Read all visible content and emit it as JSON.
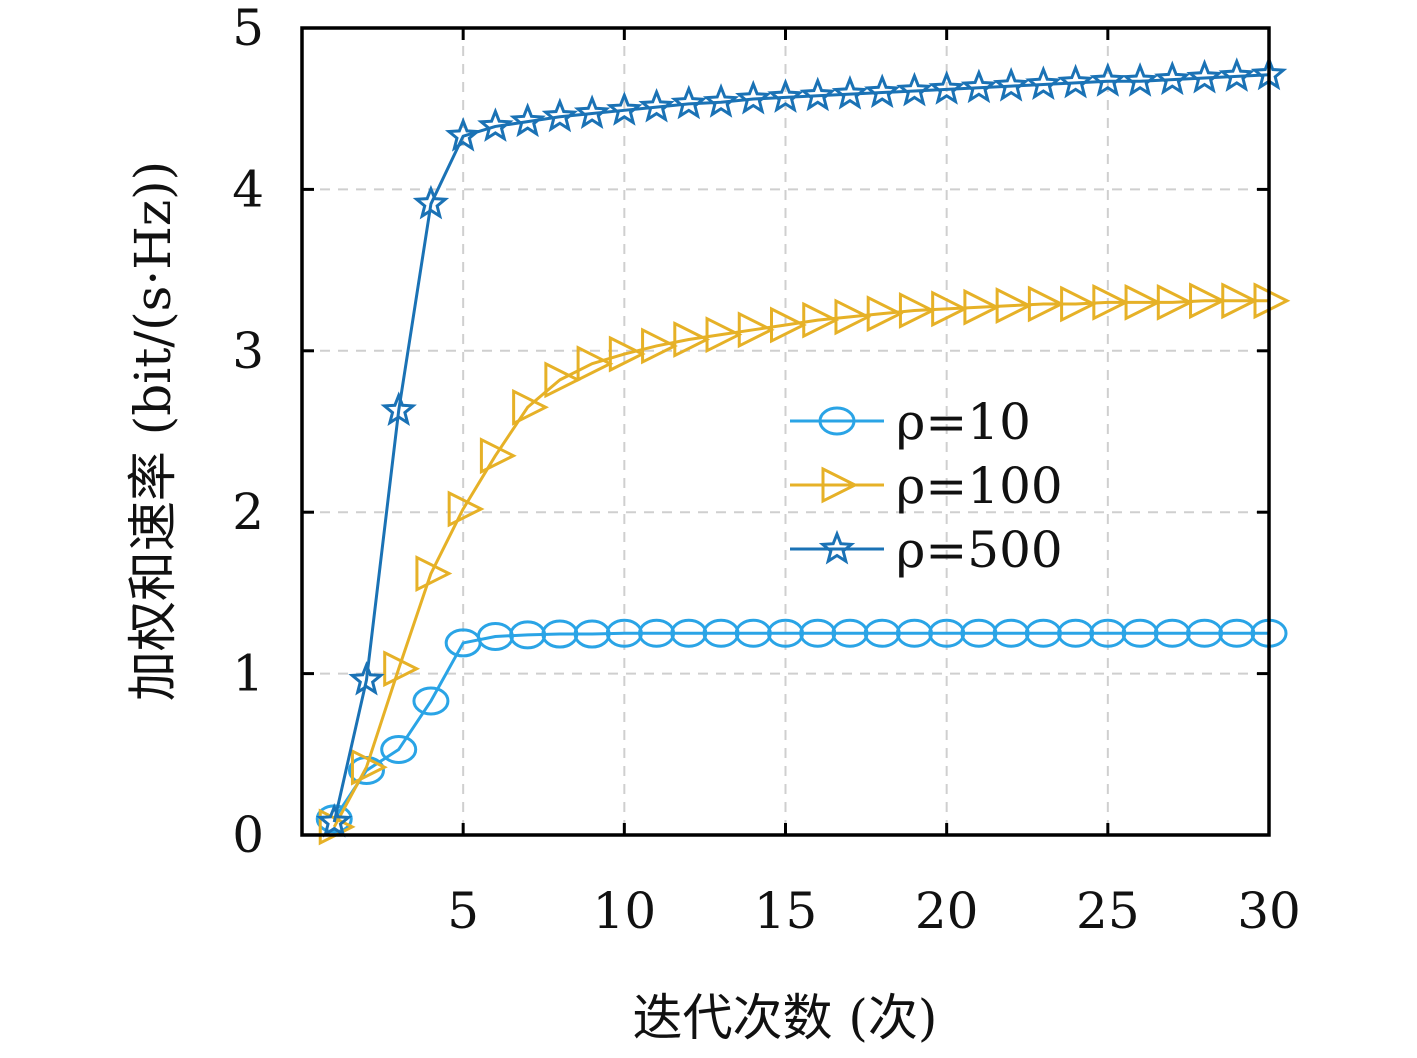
{
  "chart_data": {
    "type": "line",
    "xlabel": "迭代次数 (次)",
    "ylabel": "加权和速率 (bit/(s·Hz))",
    "xlim": [
      0,
      30
    ],
    "ylim": [
      0,
      5
    ],
    "xticks": [
      5,
      10,
      15,
      20,
      25,
      30
    ],
    "yticks": [
      0,
      1,
      2,
      3,
      4,
      5
    ],
    "grid": true,
    "legend_position": "center-right",
    "x": [
      1,
      2,
      3,
      4,
      5,
      6,
      7,
      8,
      9,
      10,
      11,
      12,
      13,
      14,
      15,
      16,
      17,
      18,
      19,
      20,
      21,
      22,
      23,
      24,
      25,
      26,
      27,
      28,
      29,
      30
    ],
    "series": [
      {
        "name": "ρ=10",
        "color": "#2aa4e6",
        "marker": "circle",
        "values": [
          0.1,
          0.4,
          0.53,
          0.83,
          1.19,
          1.23,
          1.24,
          1.245,
          1.245,
          1.25,
          1.25,
          1.25,
          1.25,
          1.25,
          1.25,
          1.25,
          1.25,
          1.25,
          1.25,
          1.25,
          1.25,
          1.25,
          1.25,
          1.25,
          1.25,
          1.25,
          1.25,
          1.25,
          1.25,
          1.25
        ]
      },
      {
        "name": "ρ=100",
        "color": "#e6b127",
        "marker": "triangle-right",
        "values": [
          0.05,
          0.42,
          1.03,
          1.62,
          2.02,
          2.35,
          2.65,
          2.82,
          2.92,
          2.98,
          3.03,
          3.07,
          3.1,
          3.13,
          3.16,
          3.19,
          3.21,
          3.23,
          3.25,
          3.26,
          3.27,
          3.28,
          3.29,
          3.29,
          3.3,
          3.3,
          3.3,
          3.31,
          3.31,
          3.31
        ]
      },
      {
        "name": "ρ=500",
        "color": "#1a72b5",
        "marker": "star",
        "values": [
          0.08,
          0.96,
          2.63,
          3.91,
          4.33,
          4.39,
          4.42,
          4.45,
          4.47,
          4.49,
          4.51,
          4.53,
          4.54,
          4.56,
          4.57,
          4.58,
          4.59,
          4.6,
          4.61,
          4.62,
          4.63,
          4.64,
          4.65,
          4.66,
          4.67,
          4.67,
          4.68,
          4.69,
          4.7,
          4.71
        ]
      }
    ]
  }
}
